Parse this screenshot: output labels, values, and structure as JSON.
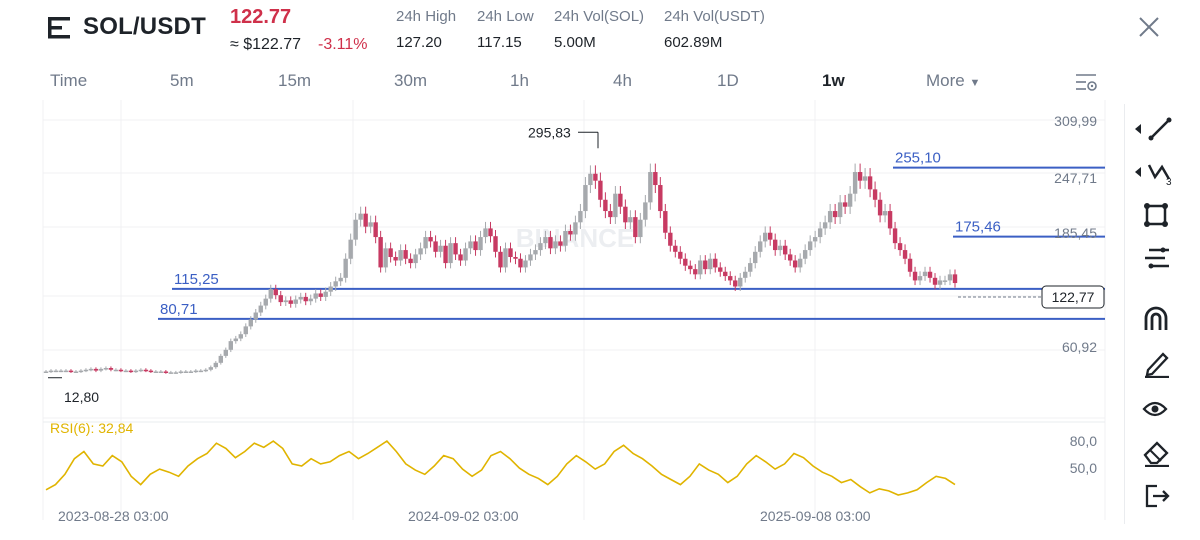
{
  "header": {
    "pair": "SOL/USDT",
    "price": "122.77",
    "approx": "≈ $122.77",
    "change": "-3.11%",
    "stats": [
      {
        "label": "24h High",
        "value": "127.20"
      },
      {
        "label": "24h Low",
        "value": "117.15"
      },
      {
        "label": "24h Vol(SOL)",
        "value": "5.00M"
      },
      {
        "label": "24h Vol(USDT)",
        "value": "602.89M"
      }
    ]
  },
  "tabs": [
    "Time",
    "5m",
    "15m",
    "30m",
    "1h",
    "4h",
    "1D",
    "1w",
    "More"
  ],
  "active_tab": "1w",
  "watermark": "BINANCE",
  "colors": {
    "up": "#a6a9ad",
    "down": "#c73a62",
    "line": "#3b5fc4",
    "rsi": "#e0b400",
    "negative": "#cf304a"
  },
  "icons": [
    "menu-icon",
    "close-icon",
    "settings-icon",
    "line-tool-icon",
    "multi-line-icon",
    "shape-tool-icon",
    "fib-tool-icon",
    "magnet-icon",
    "pencil-icon",
    "eye-icon",
    "eraser-icon",
    "exit-icon"
  ],
  "chart_data": {
    "type": "candlestick",
    "interval": "1w",
    "y_axis_labels": [
      "309,99",
      "247,71",
      "185,45",
      "122,77",
      "60,92"
    ],
    "x_axis_labels": [
      "2023-08-28 03:00",
      "2024-09-02 03:00",
      "2025-09-08 03:00"
    ],
    "annotations": [
      {
        "text": "295,83",
        "value": 295.83
      },
      {
        "text": "12,80",
        "value": 12.8
      }
    ],
    "horizontal_lines": [
      {
        "label": "255,10",
        "value": 255.1
      },
      {
        "label": "175,46",
        "value": 175.46
      },
      {
        "label": "115,25",
        "value": 115.25
      },
      {
        "label": "80,71",
        "value": 80.71
      }
    ],
    "last_price": "122,77",
    "closes": [
      20,
      21,
      21,
      21,
      21,
      20,
      20,
      21,
      22,
      23,
      21,
      23,
      24,
      22,
      22,
      21,
      21,
      20,
      21,
      22,
      21,
      20,
      20,
      20,
      19,
      19,
      19,
      20,
      20,
      20,
      21,
      21,
      22,
      25,
      30,
      38,
      45,
      55,
      58,
      63,
      72,
      80,
      88,
      96,
      104,
      115,
      108,
      100,
      102,
      98,
      103,
      106,
      101,
      104,
      110,
      106,
      112,
      118,
      124,
      128,
      150,
      172,
      195,
      202,
      187,
      192,
      175,
      140,
      162,
      152,
      148,
      160,
      150,
      145,
      155,
      162,
      175,
      170,
      158,
      165,
      145,
      168,
      155,
      148,
      162,
      170,
      160,
      175,
      185,
      176,
      158,
      140,
      162,
      152,
      150,
      140,
      148,
      155,
      160,
      168,
      175,
      162,
      170,
      165,
      182,
      178,
      192,
      205,
      235,
      248,
      240,
      218,
      205,
      198,
      225,
      210,
      192,
      198,
      175,
      195,
      215,
      250,
      235,
      205,
      180,
      165,
      158,
      150,
      142,
      138,
      132,
      148,
      138,
      150,
      140,
      135,
      130,
      125,
      118,
      128,
      135,
      145,
      158,
      170,
      180,
      172,
      160,
      165,
      155,
      148,
      140,
      150,
      160,
      170,
      175,
      185,
      192,
      205,
      198,
      215,
      210,
      225,
      250,
      240,
      245,
      230,
      218,
      200,
      205,
      185,
      168,
      160,
      150,
      135,
      125,
      130,
      135,
      128,
      120,
      125,
      125,
      132,
      122
    ],
    "rsi": {
      "label": "RSI(6): 32,84",
      "levels": [
        "80,0",
        "50,0"
      ],
      "values": [
        25,
        30,
        40,
        55,
        62,
        50,
        48,
        58,
        52,
        38,
        30,
        40,
        45,
        42,
        38,
        48,
        55,
        60,
        70,
        65,
        56,
        62,
        70,
        66,
        72,
        65,
        50,
        48,
        55,
        50,
        52,
        58,
        62,
        55,
        60,
        66,
        72,
        62,
        50,
        44,
        40,
        48,
        58,
        55,
        45,
        38,
        44,
        58,
        62,
        55,
        46,
        40,
        36,
        30,
        38,
        50,
        58,
        52,
        45,
        50,
        62,
        68,
        60,
        55,
        48,
        40,
        35,
        30,
        38,
        50,
        44,
        40,
        32,
        38,
        50,
        58,
        52,
        45,
        50,
        60,
        56,
        48,
        42,
        38,
        32,
        35,
        28,
        22,
        26,
        24,
        20,
        22,
        25,
        32,
        38,
        36,
        30
      ]
    }
  }
}
